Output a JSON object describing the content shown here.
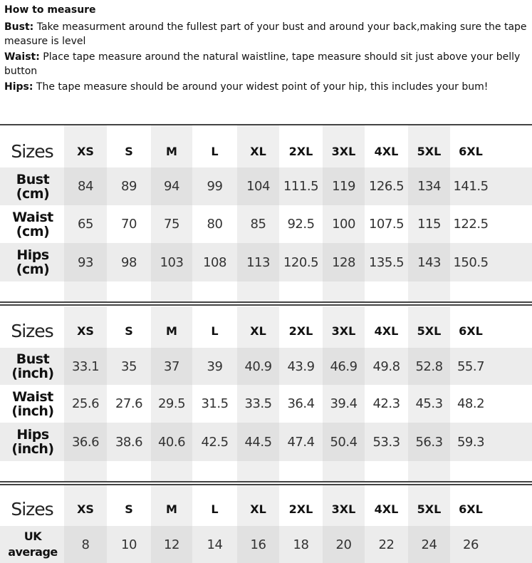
{
  "intro": {
    "title": "How to measure",
    "items": [
      {
        "label": "Bust:",
        "text": " Take measurment around the fullest part of your bust and around your back,making sure the tape measure is level"
      },
      {
        "label": "Waist:",
        "text": " Place tape measure around the natural waistline, tape measure should sit just above your belly button"
      },
      {
        "label": "Hips:",
        "text": " The tape measure should be around your widest point of your hip, this includes your bum!"
      }
    ]
  },
  "sizes": [
    "XS",
    "S",
    "M",
    "L",
    "XL",
    "2XL",
    "3XL",
    "4XL",
    "5XL",
    "6XL"
  ],
  "tables": [
    {
      "header_label": "Sizes",
      "rows": [
        {
          "label1": "Bust",
          "label2": "(cm)",
          "values": [
            "84",
            "89",
            "94",
            "99",
            "104",
            "111.5",
            "119",
            "126.5",
            "134",
            "141.5"
          ]
        },
        {
          "label1": "Waist",
          "label2": "(cm)",
          "values": [
            "65",
            "70",
            "75",
            "80",
            "85",
            "92.5",
            "100",
            "107.5",
            "115",
            "122.5"
          ]
        },
        {
          "label1": "Hips",
          "label2": "(cm)",
          "values": [
            "93",
            "98",
            "103",
            "108",
            "113",
            "120.5",
            "128",
            "135.5",
            "143",
            "150.5"
          ]
        }
      ]
    },
    {
      "header_label": "Sizes",
      "rows": [
        {
          "label1": "Bust",
          "label2": "(inch)",
          "values": [
            "33.1",
            "35",
            "37",
            "39",
            "40.9",
            "43.9",
            "46.9",
            "49.8",
            "52.8",
            "55.7"
          ]
        },
        {
          "label1": "Waist",
          "label2": "(inch)",
          "values": [
            "25.6",
            "27.6",
            "29.5",
            "31.5",
            "33.5",
            "36.4",
            "39.4",
            "42.3",
            "45.3",
            "48.2"
          ]
        },
        {
          "label1": "Hips",
          "label2": "(inch)",
          "values": [
            "36.6",
            "38.6",
            "40.6",
            "42.5",
            "44.5",
            "47.4",
            "50.4",
            "53.3",
            "56.3",
            "59.3"
          ]
        }
      ]
    },
    {
      "header_label": "Sizes",
      "rows": [
        {
          "label1": "UK",
          "label2": "average",
          "values": [
            "8",
            "10",
            "12",
            "14",
            "16",
            "18",
            "20",
            "22",
            "24",
            "26"
          ]
        }
      ]
    }
  ]
}
